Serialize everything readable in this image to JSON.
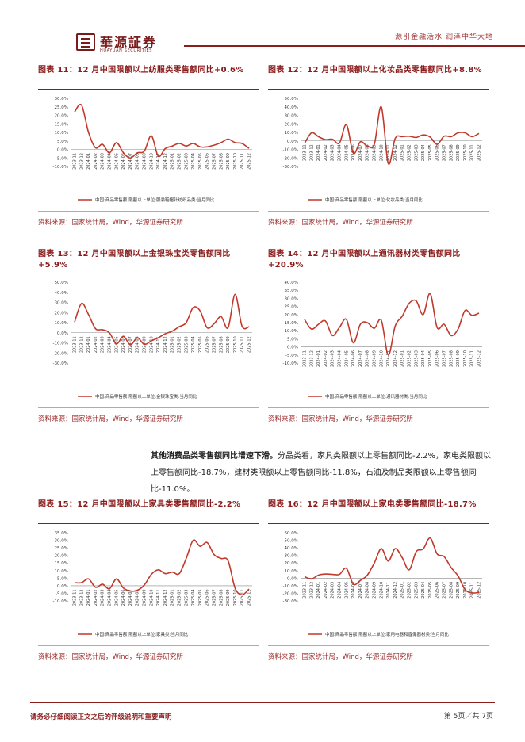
{
  "header": {
    "logo_text": "華源証券",
    "logo_sub": "HUAYUAN SECURITIES",
    "slogan": "源引金融活水 润泽中华大地"
  },
  "paragraph": {
    "bold": "其他消费品类零售额同比增速下滑。",
    "rest": "分品类看，家具类限额以上零售额同比-2.2%，家电类限额以上零售额同比-18.7%，建材类限额以上零售额同比-11.8%，石油及制品类限额以上零售额同比-11.0%。"
  },
  "footer": {
    "left": "请务必仔细阅读正文之后的评级说明和重要声明",
    "right": "第 5页／共 7页"
  },
  "colors": {
    "accent": "#8b1a1a",
    "line": "#c0392b"
  },
  "chart_data": [
    {
      "type": "line",
      "title": "图表 11：12 月中国限额以上纺服类零售额同比+0.6%",
      "source": "资料来源：国家统计局，Wind，华源证券研究所",
      "legend": "中国:商品零售额:限额以上单位:服装鞋帽针纺织品类:当月同比",
      "x": [
        "2023-11",
        "2023-12",
        "2024-01",
        "2024-02",
        "2024-03",
        "2024-04",
        "2024-05",
        "2024-06",
        "2024-07",
        "2024-08",
        "2024-09",
        "2024-10",
        "2024-11",
        "2024-12",
        "2025-01",
        "2025-02",
        "2025-03",
        "2025-04",
        "2025-05",
        "2025-06",
        "2025-07",
        "2025-08",
        "2025-09",
        "2025-10",
        "2025-11",
        "2025-12"
      ],
      "values": [
        22.0,
        26.0,
        10.0,
        1.0,
        3.0,
        -2.0,
        4.0,
        -2.0,
        -5.0,
        -2.0,
        -1.0,
        8.0,
        -4.0,
        0.5,
        2.0,
        3.5,
        2.0,
        3.5,
        1.5,
        1.5,
        2.5,
        4.0,
        6.0,
        4.0,
        3.5,
        0.6
      ],
      "yticks": [
        "30.0%",
        "25.0%",
        "20.0%",
        "15.0%",
        "10.0%",
        "5.0%",
        "0.0%",
        "-5.0%",
        "-10.0%"
      ],
      "ylim": [
        -10,
        30
      ],
      "ystep": 5
    },
    {
      "type": "line",
      "title": "图表 12：12 月中国限额以上化妆品类零售额同比+8.8%",
      "source": "资料来源：国家统计局，Wind，华源证券研究所",
      "legend": "中国:商品零售额:限额以上单位:化妆品类:当月同比",
      "x": [
        "2023-11",
        "2023-12",
        "2024-01",
        "2024-02",
        "2024-03",
        "2024-04",
        "2024-05",
        "2024-06",
        "2024-07",
        "2024-08",
        "2024-09",
        "2024-10",
        "2024-11",
        "2024-12",
        "2025-01",
        "2025-02",
        "2025-03",
        "2025-04",
        "2025-05",
        "2025-06",
        "2025-07",
        "2025-08",
        "2025-09",
        "2025-10",
        "2025-11",
        "2025-12"
      ],
      "values": [
        -3.0,
        9.5,
        5.0,
        1.5,
        2.0,
        -2.5,
        19.0,
        -14.5,
        -1.0,
        -6.0,
        -4.0,
        40.0,
        -26.5,
        3.0,
        5.0,
        5.5,
        4.0,
        7.0,
        4.5,
        -4.0,
        5.5,
        5.0,
        9.5,
        9.5,
        5.0,
        8.8
      ],
      "yticks": [
        "50.0%",
        "40.0%",
        "30.0%",
        "20.0%",
        "10.0%",
        "0.0%",
        "-10.0%",
        "-20.0%",
        "-30.0%"
      ],
      "ylim": [
        -30,
        50
      ],
      "ystep": 10
    },
    {
      "type": "line",
      "title": "图表 13：12 月中国限额以上金银珠宝类零售额同比+5.9%",
      "source": "资料来源：国家统计局，Wind，华源证券研究所",
      "legend": "中国:商品零售额:限额以上单位:金银珠宝类:当月同比",
      "x": [
        "2023-11",
        "2023-12",
        "2024-01",
        "2024-02",
        "2024-03",
        "2024-04",
        "2024-05",
        "2024-06",
        "2024-07",
        "2024-08",
        "2024-09",
        "2024-10",
        "2024-11",
        "2024-12",
        "2025-01",
        "2025-02",
        "2025-03",
        "2025-04",
        "2025-05",
        "2025-06",
        "2025-07",
        "2025-08",
        "2025-09",
        "2025-10",
        "2025-11",
        "2025-12"
      ],
      "values": [
        10.5,
        29.0,
        18.0,
        4.0,
        3.0,
        0.0,
        -11.0,
        -3.5,
        -12.0,
        -5.0,
        -11.5,
        -8.0,
        -5.0,
        -1.0,
        1.5,
        6.0,
        10.0,
        25.0,
        21.5,
        5.0,
        9.0,
        16.0,
        5.0,
        38.0,
        6.5,
        5.9
      ],
      "yticks": [
        "50.0%",
        "40.0%",
        "30.0%",
        "20.0%",
        "10.0%",
        "0.0%",
        "-10.0%",
        "-20.0%",
        "-30.0%"
      ],
      "ylim": [
        -30,
        50
      ],
      "ystep": 10
    },
    {
      "type": "line",
      "title": "图表 14：12 月中国限额以上通讯器材类零售额同比+20.9%",
      "source": "资料来源：国家统计局，Wind，华源证券研究所",
      "legend": "中国:商品零售额:限额以上单位:通讯器材类:当月同比",
      "x": [
        "2023-11",
        "2023-12",
        "2024-01",
        "2024-02",
        "2024-03",
        "2024-04",
        "2024-05",
        "2024-06",
        "2024-07",
        "2024-08",
        "2024-09",
        "2024-10",
        "2024-11",
        "2024-12",
        "2025-01",
        "2025-02",
        "2025-03",
        "2025-04",
        "2025-05",
        "2025-06",
        "2025-07",
        "2025-08",
        "2025-09",
        "2025-10",
        "2025-11",
        "2025-12"
      ],
      "values": [
        17.0,
        11.0,
        14.0,
        16.0,
        7.0,
        12.0,
        17.0,
        2.5,
        14.0,
        15.0,
        11.5,
        16.5,
        -5.0,
        13.0,
        19.0,
        27.0,
        28.5,
        20.0,
        33.0,
        12.0,
        14.0,
        7.0,
        11.0,
        22.5,
        19.5,
        20.9
      ],
      "yticks": [
        "40.0%",
        "35.0%",
        "30.0%",
        "25.0%",
        "20.0%",
        "15.0%",
        "10.0%",
        "5.0%",
        "0.0%",
        "-5.0%",
        "-10.0%"
      ],
      "ylim": [
        -10,
        40
      ],
      "ystep": 5
    },
    {
      "type": "line",
      "title": "图表 15：12 月中国限额以上家具类零售额同比-2.2%",
      "source": "资料来源：国家统计局，Wind，华源证券研究所",
      "legend": "中国:商品零售额:限额以上单位:家具类:当月同比",
      "x": [
        "2023-11",
        "2023-12",
        "2024-01",
        "2024-02",
        "2024-03",
        "2024-04",
        "2024-05",
        "2024-06",
        "2024-07",
        "2024-08",
        "2024-09",
        "2024-10",
        "2024-11",
        "2024-12",
        "2025-01",
        "2025-02",
        "2025-03",
        "2025-04",
        "2025-05",
        "2025-06",
        "2025-07",
        "2025-08",
        "2025-09",
        "2025-10",
        "2025-11",
        "2025-12"
      ],
      "values": [
        2.0,
        2.0,
        4.5,
        -1.0,
        1.0,
        -2.0,
        4.5,
        -1.5,
        -3.5,
        -3.0,
        0.5,
        7.5,
        10.5,
        8.0,
        9.0,
        8.0,
        18.0,
        30.0,
        26.0,
        28.5,
        20.5,
        18.0,
        16.5,
        -1.5,
        -6.0,
        -2.2
      ],
      "yticks": [
        "35.0%",
        "30.0%",
        "25.0%",
        "20.0%",
        "15.0%",
        "10.0%",
        "5.0%",
        "0.0%",
        "-5.0%",
        "-10.0%"
      ],
      "ylim": [
        -10,
        35
      ],
      "ystep": 5
    },
    {
      "type": "line",
      "title": "图表 16：12 月中国限额以上家电类零售额同比-18.7%",
      "source": "资料来源：国家统计局，Wind，华源证券研究所",
      "legend": "中国:商品零售额:限额以上单位:家用电器和音像器材类:当月同比",
      "x": [
        "2023-11",
        "2023-12",
        "2024-01",
        "2024-02",
        "2024-03",
        "2024-04",
        "2024-05",
        "2024-06",
        "2024-07",
        "2024-08",
        "2024-09",
        "2024-10",
        "2024-11",
        "2024-12",
        "2025-01",
        "2025-02",
        "2025-03",
        "2025-04",
        "2025-05",
        "2025-06",
        "2025-07",
        "2025-08",
        "2025-09",
        "2025-10",
        "2025-11",
        "2025-12"
      ],
      "values": [
        2.0,
        -1.0,
        4.0,
        5.5,
        5.0,
        5.0,
        13.0,
        -8.0,
        -3.0,
        4.0,
        20.0,
        39.0,
        22.5,
        39.0,
        27.0,
        11.0,
        35.0,
        38.5,
        53.0,
        32.0,
        28.5,
        14.0,
        3.0,
        -15.0,
        -19.5,
        -18.7
      ],
      "yticks": [
        "60.0%",
        "50.0%",
        "40.0%",
        "30.0%",
        "20.0%",
        "10.0%",
        "0.0%",
        "-10.0%",
        "-20.0%",
        "-30.0%"
      ],
      "ylim": [
        -30,
        60
      ],
      "ystep": 10
    }
  ]
}
